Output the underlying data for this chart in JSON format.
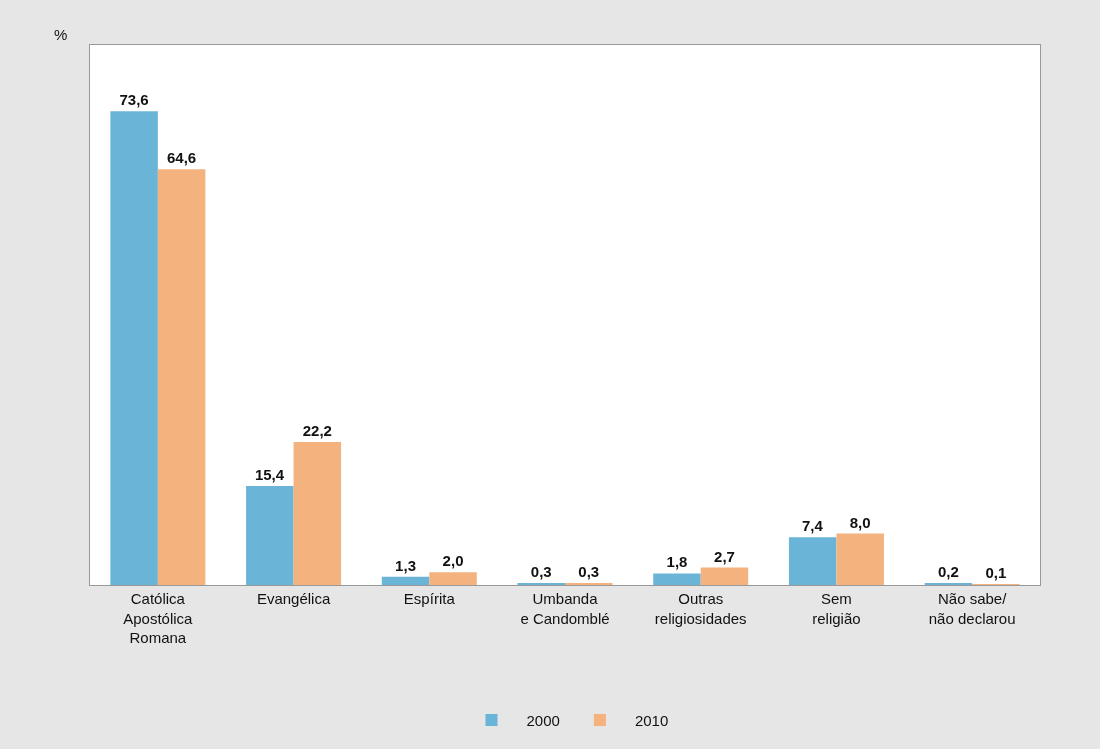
{
  "chart_data": {
    "type": "bar",
    "ylabel": "%",
    "categories": [
      "Católica\nApostólica\nRomana",
      "Evangélica",
      "Espírita",
      "Umbanda\ne Candomblé",
      "Outras\nreligiosidades",
      "Sem\nreligião",
      "Não sabe/\nnão declarou"
    ],
    "series": [
      {
        "name": "2000",
        "color": "#6ab4d8",
        "values": [
          73.6,
          15.4,
          1.3,
          0.3,
          1.8,
          7.4,
          0.2
        ],
        "value_labels": [
          "73,6",
          "15,4",
          "1,3",
          "0,3",
          "1,8",
          "7,4",
          "0,2"
        ]
      },
      {
        "name": "2010",
        "color": "#f4b27e",
        "values": [
          64.6,
          22.2,
          2.0,
          0.3,
          2.7,
          8.0,
          0.1
        ],
        "value_labels": [
          "64,6",
          "22,2",
          "2,0",
          "0,3",
          "2,7",
          "8,0",
          "0,1"
        ]
      }
    ],
    "legend": "bottom",
    "tick_labels": "x"
  }
}
